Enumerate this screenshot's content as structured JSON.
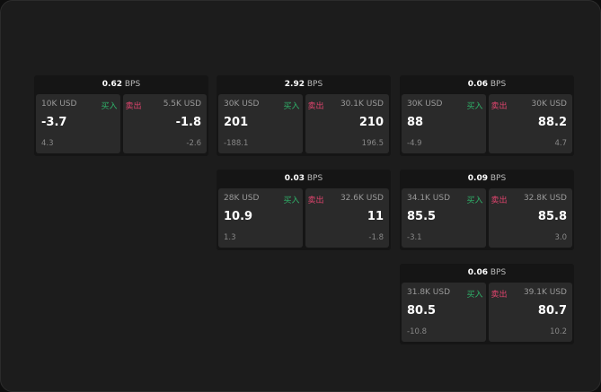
{
  "unit": "BPS",
  "buy_label": "买入",
  "sell_label": "卖出",
  "colors": {
    "buy": "#2fb36a",
    "sell": "#e0446e"
  },
  "cards": [
    {
      "bps": "0.62",
      "buy": {
        "qty": "10K USD",
        "price": "-3.7",
        "change": "4.3"
      },
      "sell": {
        "qty": "5.5K USD",
        "price": "-1.8",
        "change": "-2.6"
      }
    },
    {
      "bps": "2.92",
      "buy": {
        "qty": "30K USD",
        "price": "201",
        "change": "-188.1"
      },
      "sell": {
        "qty": "30.1K USD",
        "price": "210",
        "change": "196.5"
      }
    },
    {
      "bps": "0.06",
      "buy": {
        "qty": "30K USD",
        "price": "88",
        "change": "-4.9"
      },
      "sell": {
        "qty": "30K USD",
        "price": "88.2",
        "change": "4.7"
      }
    },
    {
      "bps": "0.03",
      "buy": {
        "qty": "28K USD",
        "price": "10.9",
        "change": "1.3"
      },
      "sell": {
        "qty": "32.6K USD",
        "price": "11",
        "change": "-1.8"
      }
    },
    {
      "bps": "0.09",
      "buy": {
        "qty": "34.1K USD",
        "price": "85.5",
        "change": "-3.1"
      },
      "sell": {
        "qty": "32.8K USD",
        "price": "85.8",
        "change": "3.0"
      }
    },
    {
      "bps": "0.06",
      "buy": {
        "qty": "31.8K USD",
        "price": "80.5",
        "change": "-10.8"
      },
      "sell": {
        "qty": "39.1K USD",
        "price": "80.7",
        "change": "10.2"
      }
    }
  ]
}
